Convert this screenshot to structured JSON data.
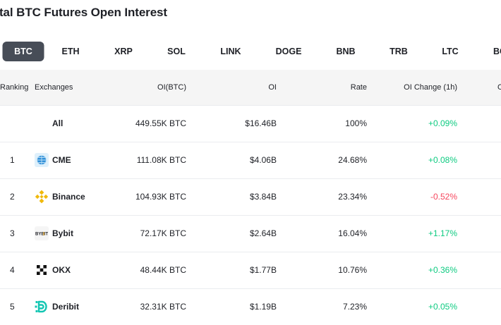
{
  "title": "tal BTC Futures Open Interest",
  "tabs": [
    "BTC",
    "ETH",
    "XRP",
    "SOL",
    "LINK",
    "DOGE",
    "BNB",
    "TRB",
    "LTC",
    "BC"
  ],
  "active_tab": "BTC",
  "headers": {
    "ranking": "Ranking",
    "exchanges": "Exchanges",
    "oi_btc": "OI(BTC)",
    "oi": "OI",
    "rate": "Rate",
    "oi_change": "OI Change (1h)",
    "cut": "O"
  },
  "rows": [
    {
      "rank": "",
      "exchange": "All",
      "logo": "",
      "oi_btc": "449.55K BTC",
      "oi": "$16.46B",
      "rate": "100%",
      "change": "+0.09%"
    },
    {
      "rank": "1",
      "exchange": "CME",
      "logo": "cme-logo-icon",
      "oi_btc": "111.08K BTC",
      "oi": "$4.06B",
      "rate": "24.68%",
      "change": "+0.08%"
    },
    {
      "rank": "2",
      "exchange": "Binance",
      "logo": "binance-logo-icon",
      "oi_btc": "104.93K BTC",
      "oi": "$3.84B",
      "rate": "23.34%",
      "change": "-0.52%"
    },
    {
      "rank": "3",
      "exchange": "Bybit",
      "logo": "bybit-logo-icon",
      "oi_btc": "72.17K BTC",
      "oi": "$2.64B",
      "rate": "16.04%",
      "change": "+1.17%"
    },
    {
      "rank": "4",
      "exchange": "OKX",
      "logo": "okx-logo-icon",
      "oi_btc": "48.44K BTC",
      "oi": "$1.77B",
      "rate": "10.76%",
      "change": "+0.36%"
    },
    {
      "rank": "5",
      "exchange": "Deribit",
      "logo": "deribit-logo-icon",
      "oi_btc": "32.31K BTC",
      "oi": "$1.19B",
      "rate": "7.23%",
      "change": "+0.05%"
    }
  ],
  "colors": {
    "positive": "#0ecb81",
    "negative": "#f6465d",
    "active_tab_bg": "#474d57"
  },
  "logo_text": {
    "bybit": "BYBIT"
  }
}
